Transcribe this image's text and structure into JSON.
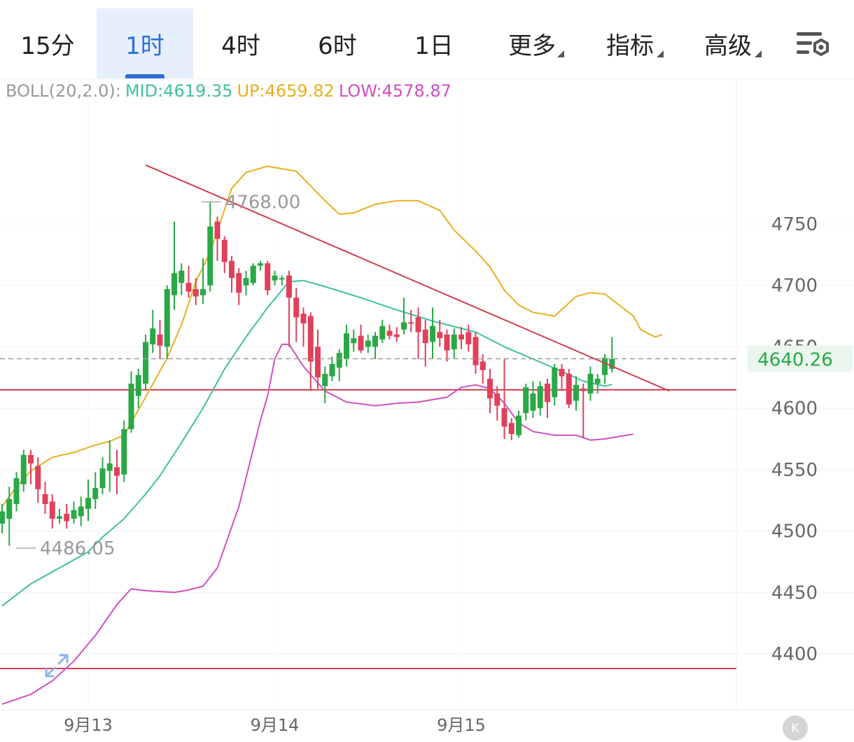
{
  "tabs": [
    {
      "label": "15分",
      "active": false,
      "dropdown": false
    },
    {
      "label": "1时",
      "active": true,
      "dropdown": false
    },
    {
      "label": "4时",
      "active": false,
      "dropdown": false
    },
    {
      "label": "6时",
      "active": false,
      "dropdown": false
    },
    {
      "label": "1日",
      "active": false,
      "dropdown": false
    },
    {
      "label": "更多",
      "active": false,
      "dropdown": true
    },
    {
      "label": "指标",
      "active": false,
      "dropdown": true
    },
    {
      "label": "高级",
      "active": false,
      "dropdown": true
    }
  ],
  "legend": {
    "name": "BOLL(20,2.0):",
    "mid": "MID:4619.35",
    "up": "UP:4659.82",
    "low": "LOW:4578.87"
  },
  "colors": {
    "accent": "#2e6fd8",
    "up_candle": "#2aa845",
    "down_candle": "#e0405a",
    "mid_line": "#3fc0a0",
    "upper_band": "#e8b020",
    "lower_band": "#d050c0",
    "trend_line": "#d04050",
    "price_label": "#2aa845",
    "legend_name": "#999999"
  },
  "chart_data": {
    "type": "candlestick",
    "indicator": "BOLL(20,2.0)",
    "y_ticks": [
      4400,
      4450,
      4500,
      4550,
      4600,
      4650,
      4700,
      4750
    ],
    "ylim": [
      4355,
      4815
    ],
    "x_labels": [
      {
        "label": "9月13",
        "index": 12
      },
      {
        "label": "9月14",
        "index": 38
      },
      {
        "label": "9月15",
        "index": 64
      }
    ],
    "last_price": "4640.26",
    "high_annotation": {
      "label": "4768.00",
      "index": 27
    },
    "low_annotation": {
      "label": "4486.05",
      "index": 0
    },
    "candles": [
      [
        4506,
        4516,
        4498,
        4522
      ],
      [
        4510,
        4526,
        4488,
        4536
      ],
      [
        4522,
        4543,
        4516,
        4548
      ],
      [
        4538,
        4562,
        4532,
        4566
      ],
      [
        4562,
        4555,
        4538,
        4566
      ],
      [
        4553,
        4534,
        4523,
        4560
      ],
      [
        4530,
        4522,
        4514,
        4540
      ],
      [
        4524,
        4510,
        4502,
        4530
      ],
      [
        4510,
        4512,
        4506,
        4518
      ],
      [
        4514,
        4508,
        4502,
        4522
      ],
      [
        4510,
        4517,
        4506,
        4524
      ],
      [
        4512,
        4520,
        4504,
        4528
      ],
      [
        4518,
        4527,
        4508,
        4542
      ],
      [
        4526,
        4535,
        4518,
        4548
      ],
      [
        4535,
        4551,
        4530,
        4560
      ],
      [
        4549,
        4555,
        4532,
        4574
      ],
      [
        4552,
        4545,
        4530,
        4566
      ],
      [
        4546,
        4583,
        4540,
        4590
      ],
      [
        4583,
        4620,
        4580,
        4630
      ],
      [
        4610,
        4627,
        4600,
        4632
      ],
      [
        4620,
        4654,
        4615,
        4660
      ],
      [
        4652,
        4665,
        4645,
        4680
      ],
      [
        4660,
        4651,
        4640,
        4672
      ],
      [
        4650,
        4697,
        4640,
        4700
      ],
      [
        4692,
        4710,
        4680,
        4752
      ],
      [
        4702,
        4712,
        4692,
        4718
      ],
      [
        4702,
        4695,
        4690,
        4716
      ],
      [
        4697,
        4691,
        4684,
        4706
      ],
      [
        4692,
        4697,
        4685,
        4722
      ],
      [
        4700,
        4748,
        4695,
        4768
      ],
      [
        4752,
        4738,
        4720,
        4756
      ],
      [
        4737,
        4719,
        4710,
        4740
      ],
      [
        4720,
        4706,
        4694,
        4724
      ],
      [
        4710,
        4694,
        4684,
        4714
      ],
      [
        4700,
        4706,
        4692,
        4712
      ],
      [
        4702,
        4716,
        4700,
        4718
      ],
      [
        4716,
        4718,
        4712,
        4720
      ],
      [
        4718,
        4696,
        4692,
        4720
      ],
      [
        4704,
        4708,
        4700,
        4712
      ],
      [
        4706,
        4706,
        4700,
        4708
      ],
      [
        4708,
        4690,
        4650,
        4712
      ],
      [
        4690,
        4674,
        4654,
        4698
      ],
      [
        4677,
        4669,
        4650,
        4682
      ],
      [
        4675,
        4638,
        4614,
        4678
      ],
      [
        4650,
        4625,
        4616,
        4664
      ],
      [
        4618,
        4628,
        4604,
        4634
      ],
      [
        4626,
        4636,
        4622,
        4642
      ],
      [
        4633,
        4645,
        4622,
        4648
      ],
      [
        4640,
        4661,
        4634,
        4668
      ],
      [
        4653,
        4657,
        4646,
        4664
      ],
      [
        4659,
        4647,
        4645,
        4668
      ],
      [
        4650,
        4655,
        4645,
        4660
      ],
      [
        4650,
        4659,
        4640,
        4662
      ],
      [
        4656,
        4667,
        4653,
        4672
      ],
      [
        4663,
        4659,
        4656,
        4668
      ],
      [
        4660,
        4658,
        4654,
        4666
      ],
      [
        4664,
        4670,
        4660,
        4690
      ],
      [
        4670,
        4669,
        4662,
        4680
      ],
      [
        4674,
        4662,
        4640,
        4682
      ],
      [
        4664,
        4653,
        4634,
        4672
      ],
      [
        4654,
        4667,
        4640,
        4682
      ],
      [
        4662,
        4657,
        4650,
        4672
      ],
      [
        4660,
        4647,
        4638,
        4664
      ],
      [
        4648,
        4660,
        4640,
        4665
      ],
      [
        4660,
        4656,
        4648,
        4666
      ],
      [
        4662,
        4652,
        4646,
        4668
      ],
      [
        4658,
        4635,
        4628,
        4662
      ],
      [
        4638,
        4631,
        4620,
        4644
      ],
      [
        4624,
        4608,
        4596,
        4632
      ],
      [
        4612,
        4602,
        4590,
        4618
      ],
      [
        4600,
        4585,
        4575,
        4640
      ],
      [
        4588,
        4579,
        4574,
        4592
      ],
      [
        4578,
        4594,
        4576,
        4598
      ],
      [
        4596,
        4617,
        4590,
        4620
      ],
      [
        4598,
        4612,
        4592,
        4622
      ],
      [
        4600,
        4618,
        4594,
        4622
      ],
      [
        4620,
        4605,
        4592,
        4624
      ],
      [
        4609,
        4633,
        4602,
        4636
      ],
      [
        4632,
        4626,
        4614,
        4636
      ],
      [
        4628,
        4603,
        4600,
        4632
      ],
      [
        4606,
        4619,
        4598,
        4626
      ],
      [
        4616,
        4614,
        4576,
        4620
      ],
      [
        4612,
        4628,
        4606,
        4634
      ],
      [
        4620,
        4624,
        4612,
        4628
      ],
      [
        4627,
        4641,
        4620,
        4644
      ],
      [
        4632,
        4640,
        4629,
        4658
      ]
    ],
    "boll_mid": [
      [
        0,
        4439
      ],
      [
        4,
        4457
      ],
      [
        8,
        4470
      ],
      [
        12,
        4483
      ],
      [
        14,
        4495
      ],
      [
        17,
        4510
      ],
      [
        20,
        4530
      ],
      [
        22,
        4545
      ],
      [
        25,
        4572
      ],
      [
        28,
        4600
      ],
      [
        31,
        4632
      ],
      [
        34,
        4658
      ],
      [
        37,
        4682
      ],
      [
        39,
        4696
      ],
      [
        40,
        4703
      ],
      [
        42,
        4704
      ],
      [
        45,
        4699
      ],
      [
        50,
        4690
      ],
      [
        55,
        4680
      ],
      [
        60,
        4671
      ],
      [
        64,
        4665
      ],
      [
        66,
        4662
      ],
      [
        70,
        4650
      ],
      [
        74,
        4640
      ],
      [
        78,
        4630
      ],
      [
        81,
        4622
      ],
      [
        84,
        4618
      ],
      [
        85,
        4619.35
      ]
    ],
    "boll_up": [
      [
        0,
        4520
      ],
      [
        2,
        4536
      ],
      [
        4,
        4549
      ],
      [
        7,
        4560
      ],
      [
        10,
        4564
      ],
      [
        13,
        4570
      ],
      [
        15,
        4573
      ],
      [
        17,
        4578
      ],
      [
        20,
        4609
      ],
      [
        23,
        4641
      ],
      [
        25,
        4668
      ],
      [
        27,
        4703
      ],
      [
        29,
        4727
      ],
      [
        32,
        4779
      ],
      [
        34,
        4792
      ],
      [
        37,
        4797
      ],
      [
        41,
        4793
      ],
      [
        45,
        4769
      ],
      [
        47,
        4758
      ],
      [
        49,
        4759
      ],
      [
        52,
        4766
      ],
      [
        55,
        4769
      ],
      [
        58,
        4769
      ],
      [
        61,
        4761
      ],
      [
        63,
        4745
      ],
      [
        66,
        4728
      ],
      [
        68,
        4715
      ],
      [
        70,
        4696
      ],
      [
        72,
        4684
      ],
      [
        74,
        4678
      ],
      [
        77,
        4675
      ],
      [
        80,
        4691
      ],
      [
        82,
        4694
      ],
      [
        84,
        4693
      ],
      [
        86,
        4684
      ],
      [
        88,
        4675
      ],
      [
        89,
        4664
      ],
      [
        91,
        4658
      ],
      [
        92,
        4659.82
      ]
    ],
    "boll_low": [
      [
        0,
        4359
      ],
      [
        2,
        4363
      ],
      [
        4,
        4367
      ],
      [
        7,
        4378
      ],
      [
        10,
        4394
      ],
      [
        13,
        4415
      ],
      [
        16,
        4440
      ],
      [
        18,
        4453
      ],
      [
        19,
        4452
      ],
      [
        21,
        4451
      ],
      [
        24,
        4450
      ],
      [
        26,
        4452
      ],
      [
        28,
        4455
      ],
      [
        30,
        4470
      ],
      [
        33,
        4520
      ],
      [
        36,
        4590
      ],
      [
        37,
        4610
      ],
      [
        38,
        4640
      ],
      [
        39,
        4652
      ],
      [
        40,
        4652
      ],
      [
        42,
        4634
      ],
      [
        45,
        4614
      ],
      [
        48,
        4605
      ],
      [
        52,
        4602
      ],
      [
        55,
        4604
      ],
      [
        58,
        4605
      ],
      [
        62,
        4609
      ],
      [
        64,
        4617
      ],
      [
        66,
        4619
      ],
      [
        68,
        4616
      ],
      [
        70,
        4604
      ],
      [
        72,
        4588
      ],
      [
        74,
        4581
      ],
      [
        77,
        4578
      ],
      [
        80,
        4578
      ],
      [
        82,
        4574
      ],
      [
        84,
        4575
      ],
      [
        86,
        4577
      ],
      [
        88,
        4578.87
      ]
    ],
    "trend_line": {
      "from": [
        20,
        4798
      ],
      "to": [
        93,
        4614
      ]
    },
    "support_lines": [
      4615,
      4388
    ],
    "grid": true
  }
}
